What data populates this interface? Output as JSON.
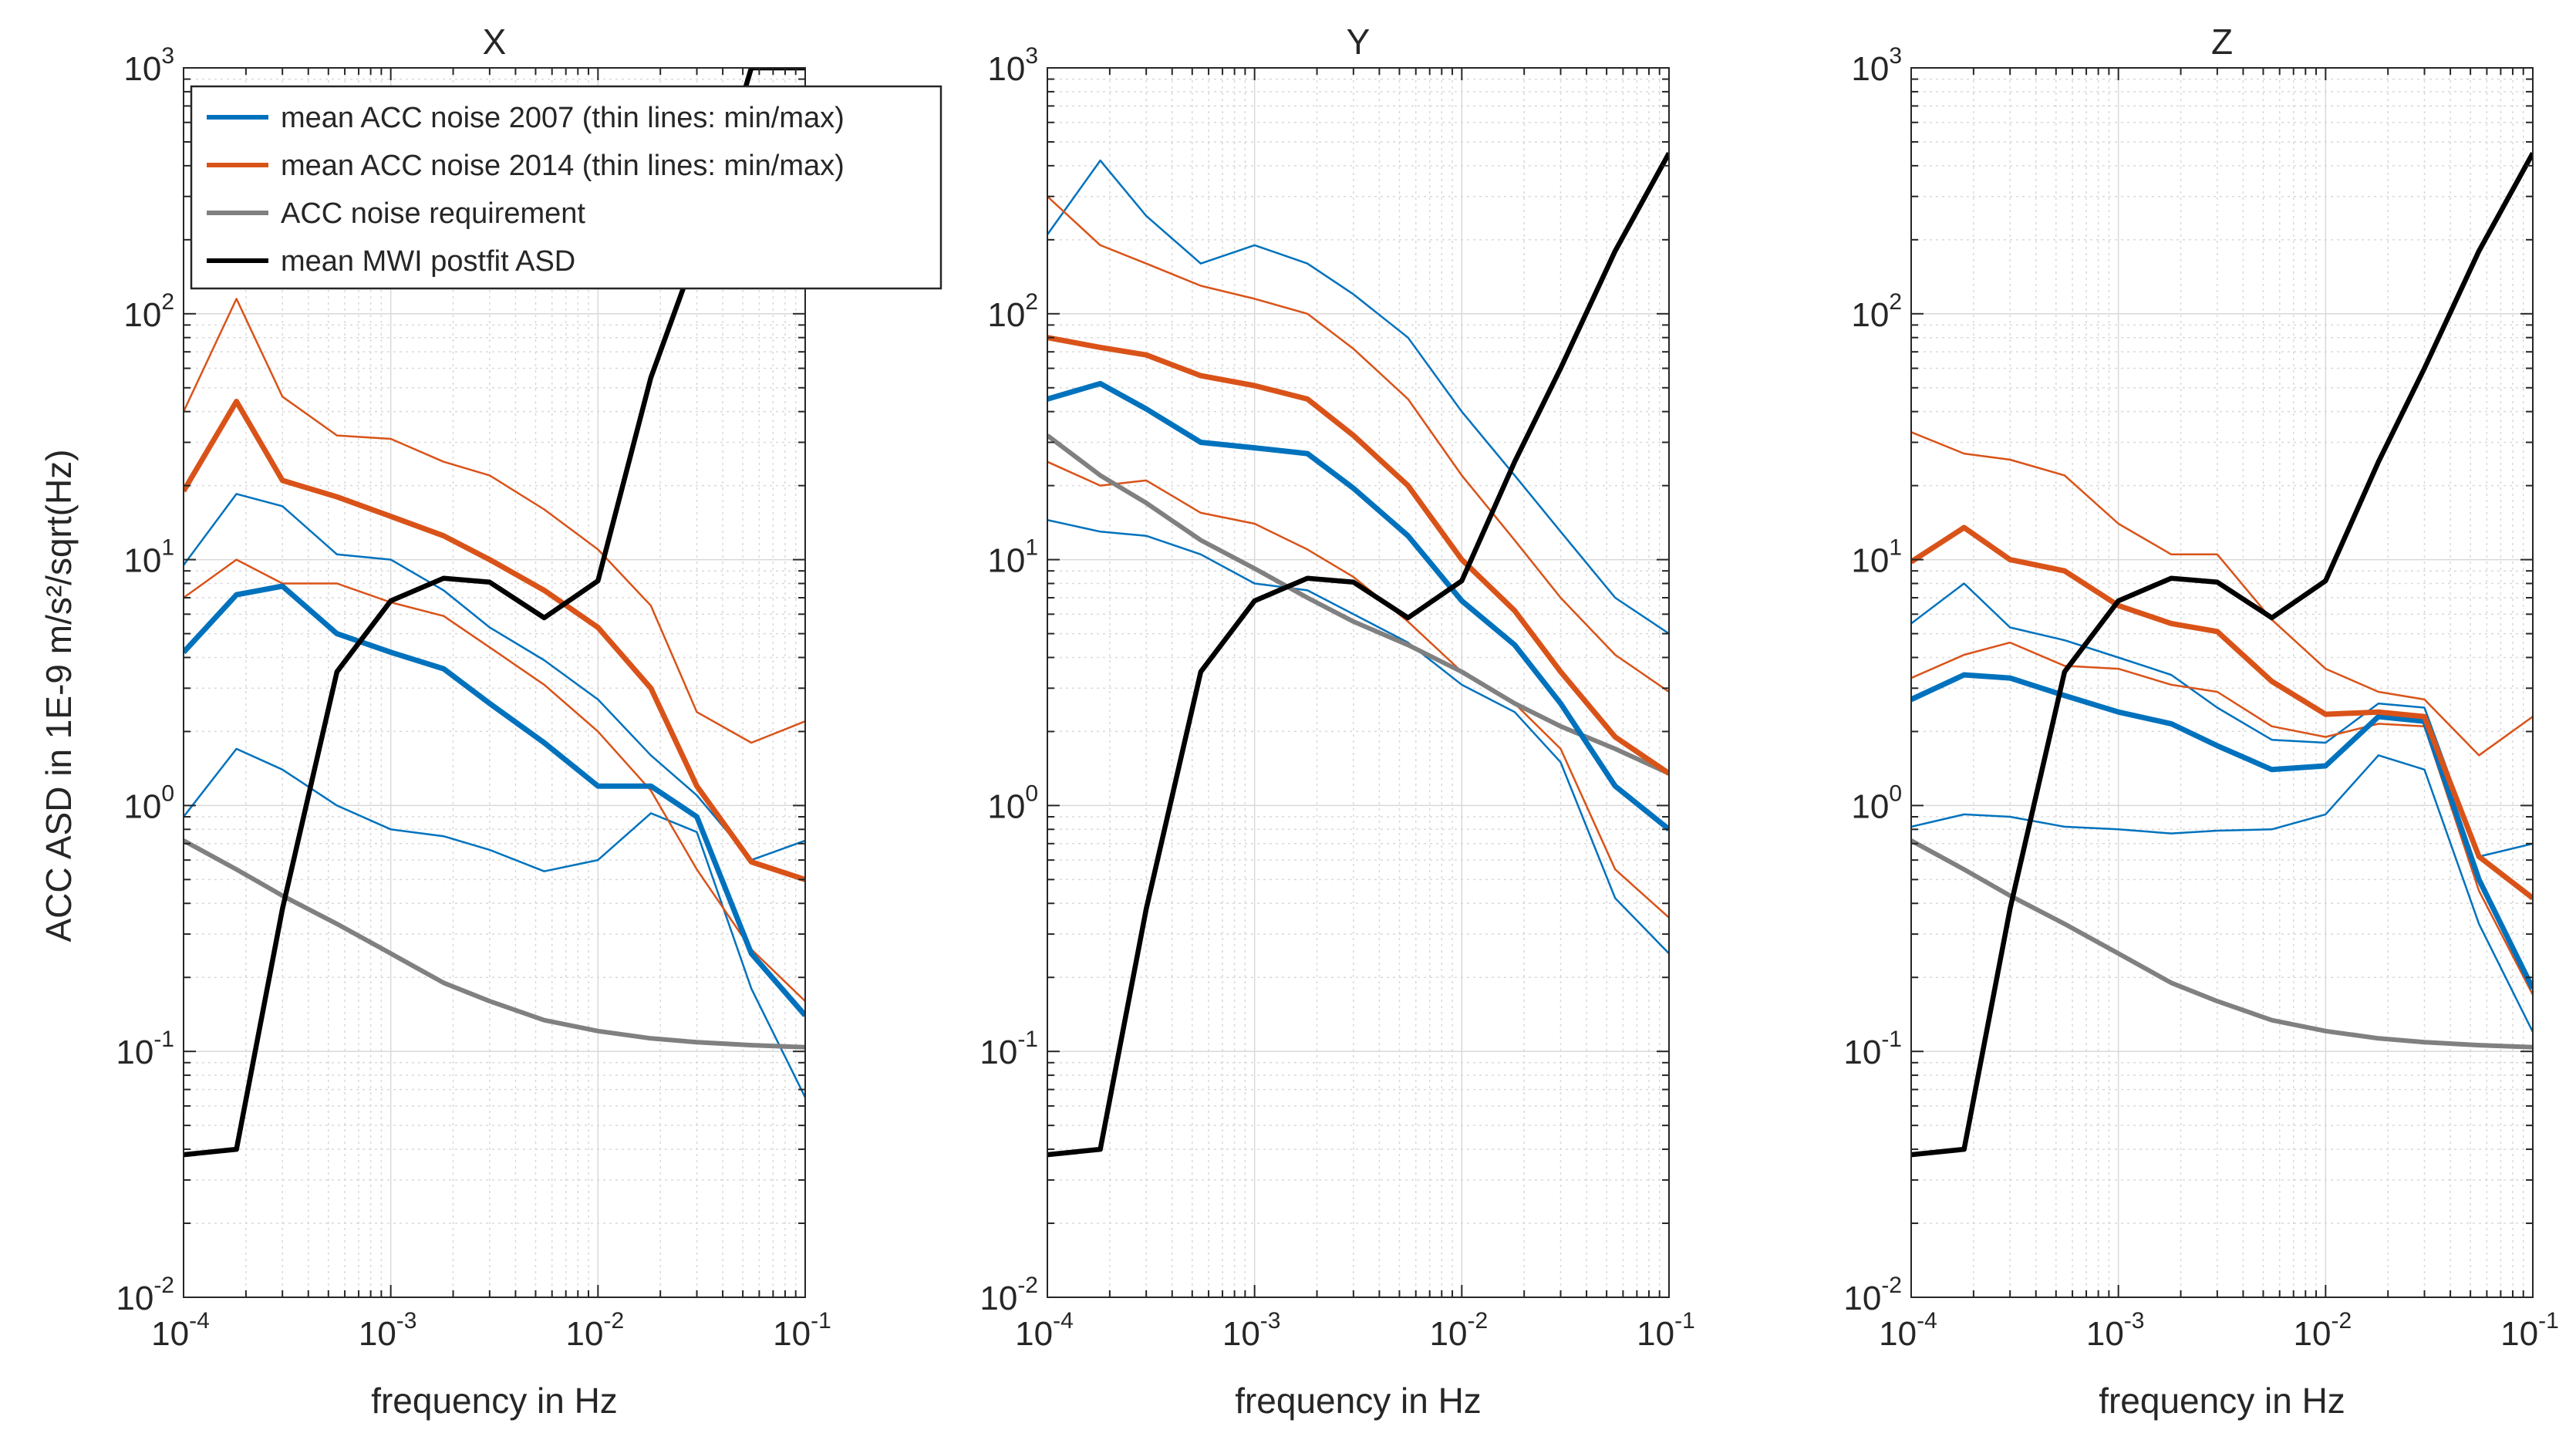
{
  "ylabel": "ACC ASD in 1E-9 m/s²/sqrt(Hz)",
  "xlabel": "frequency in Hz",
  "legend": [
    {
      "label": "mean ACC noise 2007 (thin lines: min/max)",
      "color": "#0072BD"
    },
    {
      "label": "mean ACC noise 2014 (thin lines: min/max)",
      "color": "#D95319"
    },
    {
      "label": "ACC noise requirement",
      "color": "#808080"
    },
    {
      "label": "mean MWI postfit ASD",
      "color": "#000000"
    }
  ],
  "colors": {
    "blue": "#0072BD",
    "red": "#D95319",
    "gray": "#808080",
    "black": "#000000",
    "grid": "#d9d9d9",
    "axis": "#262626"
  },
  "chart_data": [
    {
      "type": "line",
      "title": "X",
      "xscale": "log",
      "yscale": "log",
      "xlim": [
        0.0001,
        0.1
      ],
      "ylim": [
        0.01,
        1000
      ],
      "grid": true,
      "legend_position": "top-left",
      "xticks": [
        "10^-4",
        "10^-3",
        "10^-2",
        "10^-1"
      ],
      "yticks": [
        "10^-2",
        "10^-1",
        "10^0",
        "10^1",
        "10^2",
        "10^3"
      ],
      "series": [
        {
          "name": "mean ACC noise 2007 (thin lines: min/max)",
          "role": "mean2007",
          "x": [
            0.0001,
            0.00018,
            0.0003,
            0.00055,
            0.001,
            0.0018,
            0.003,
            0.0055,
            0.01,
            0.018,
            0.03,
            0.055,
            0.1
          ],
          "y": [
            4.2,
            7.2,
            7.8,
            5.0,
            4.2,
            3.6,
            2.6,
            1.8,
            1.2,
            1.2,
            0.9,
            0.25,
            0.14
          ]
        },
        {
          "role": "max2007",
          "x": [
            0.0001,
            0.00018,
            0.0003,
            0.00055,
            0.001,
            0.0018,
            0.003,
            0.0055,
            0.01,
            0.018,
            0.03,
            0.055,
            0.1
          ],
          "y": [
            9.5,
            18.5,
            16.5,
            10.5,
            10.0,
            7.5,
            5.3,
            3.9,
            2.7,
            1.6,
            1.1,
            0.6,
            0.72
          ]
        },
        {
          "role": "min2007",
          "x": [
            0.0001,
            0.00018,
            0.0003,
            0.00055,
            0.001,
            0.0018,
            0.003,
            0.0055,
            0.01,
            0.018,
            0.03,
            0.055,
            0.1
          ],
          "y": [
            0.9,
            1.7,
            1.4,
            1.0,
            0.8,
            0.75,
            0.66,
            0.54,
            0.6,
            0.93,
            0.78,
            0.18,
            0.065
          ]
        },
        {
          "name": "mean ACC noise 2014 (thin lines: min/max)",
          "role": "mean2014",
          "x": [
            0.0001,
            0.00018,
            0.0003,
            0.00055,
            0.001,
            0.0018,
            0.003,
            0.0055,
            0.01,
            0.018,
            0.03,
            0.055,
            0.1
          ],
          "y": [
            19,
            44,
            21,
            18,
            15,
            12.5,
            10,
            7.5,
            5.3,
            3.0,
            1.2,
            0.59,
            0.5
          ]
        },
        {
          "role": "max2014",
          "x": [
            0.0001,
            0.00018,
            0.0003,
            0.00055,
            0.001,
            0.0018,
            0.003,
            0.0055,
            0.01,
            0.018,
            0.03,
            0.055,
            0.1
          ],
          "y": [
            40,
            115,
            46,
            32,
            31,
            25,
            22,
            16,
            11,
            6.5,
            2.4,
            1.8,
            2.2
          ]
        },
        {
          "role": "min2014",
          "x": [
            0.0001,
            0.00018,
            0.0003,
            0.00055,
            0.001,
            0.0018,
            0.003,
            0.0055,
            0.01,
            0.018,
            0.03,
            0.055,
            0.1
          ],
          "y": [
            7,
            10,
            8,
            8,
            6.7,
            5.9,
            4.4,
            3.1,
            2.0,
            1.15,
            0.55,
            0.26,
            0.16
          ]
        },
        {
          "name": "ACC noise requirement",
          "role": "requirement",
          "x": [
            0.0001,
            0.00018,
            0.0003,
            0.00055,
            0.001,
            0.0018,
            0.003,
            0.0055,
            0.01,
            0.018,
            0.03,
            0.055,
            0.1
          ],
          "y": [
            0.72,
            0.55,
            0.43,
            0.33,
            0.25,
            0.19,
            0.16,
            0.134,
            0.121,
            0.113,
            0.109,
            0.106,
            0.104
          ]
        },
        {
          "name": "mean MWI postfit ASD",
          "role": "mwi",
          "x": [
            0.0001,
            0.00018,
            0.0003,
            0.00055,
            0.001,
            0.0018,
            0.003,
            0.0055,
            0.01,
            0.018,
            0.03,
            0.055,
            0.1
          ],
          "y": [
            0.038,
            0.04,
            0.38,
            3.5,
            6.8,
            8.4,
            8.1,
            5.8,
            8.2,
            55,
            180,
            1000,
            1000
          ]
        }
      ]
    },
    {
      "type": "line",
      "title": "Y",
      "xscale": "log",
      "yscale": "log",
      "xlim": [
        0.0001,
        0.1
      ],
      "ylim": [
        0.01,
        1000
      ],
      "grid": true,
      "xticks": [
        "10^-4",
        "10^-3",
        "10^-2",
        "10^-1"
      ],
      "yticks": [
        "10^-2",
        "10^-1",
        "10^0",
        "10^1",
        "10^2",
        "10^3"
      ],
      "series": [
        {
          "name": "mean ACC noise 2007 (thin lines: min/max)",
          "role": "mean2007",
          "x": [
            0.0001,
            0.00018,
            0.0003,
            0.00055,
            0.001,
            0.0018,
            0.003,
            0.0055,
            0.01,
            0.018,
            0.03,
            0.055,
            0.1
          ],
          "y": [
            45,
            52,
            41,
            30,
            28.5,
            27,
            19.5,
            12.5,
            6.8,
            4.5,
            2.6,
            1.2,
            0.8
          ]
        },
        {
          "role": "max2007",
          "x": [
            0.0001,
            0.00018,
            0.0003,
            0.00055,
            0.001,
            0.0018,
            0.003,
            0.0055,
            0.01,
            0.018,
            0.03,
            0.055,
            0.1
          ],
          "y": [
            210,
            420,
            250,
            160,
            190,
            160,
            120,
            80,
            40,
            22,
            13,
            7,
            5
          ]
        },
        {
          "role": "min2007",
          "x": [
            0.0001,
            0.00018,
            0.0003,
            0.00055,
            0.001,
            0.0018,
            0.003,
            0.0055,
            0.01,
            0.018,
            0.03,
            0.055,
            0.1
          ],
          "y": [
            14.5,
            13,
            12.5,
            10.5,
            8,
            7.5,
            6,
            4.6,
            3.1,
            2.4,
            1.5,
            0.42,
            0.25
          ]
        },
        {
          "name": "mean ACC noise 2014 (thin lines: min/max)",
          "role": "mean2014",
          "x": [
            0.0001,
            0.00018,
            0.0003,
            0.00055,
            0.001,
            0.0018,
            0.003,
            0.0055,
            0.01,
            0.018,
            0.03,
            0.055,
            0.1
          ],
          "y": [
            80,
            73,
            68,
            56,
            51,
            45,
            32,
            20,
            10,
            6.2,
            3.5,
            1.9,
            1.35
          ]
        },
        {
          "role": "max2014",
          "x": [
            0.0001,
            0.00018,
            0.0003,
            0.00055,
            0.001,
            0.0018,
            0.003,
            0.0055,
            0.01,
            0.018,
            0.03,
            0.055,
            0.1
          ],
          "y": [
            300,
            190,
            160,
            130,
            115,
            100,
            72,
            45,
            22,
            12,
            7,
            4.1,
            2.9
          ]
        },
        {
          "role": "min2014",
          "x": [
            0.0001,
            0.00018,
            0.0003,
            0.00055,
            0.001,
            0.0018,
            0.003,
            0.0055,
            0.01,
            0.018,
            0.03,
            0.055,
            0.1
          ],
          "y": [
            25,
            20,
            21,
            15.5,
            14,
            11,
            8.5,
            5.6,
            3.5,
            2.6,
            1.7,
            0.55,
            0.35
          ]
        },
        {
          "name": "ACC noise requirement",
          "role": "requirement",
          "x": [
            0.0001,
            0.00018,
            0.0003,
            0.00055,
            0.001,
            0.0018,
            0.003,
            0.0055,
            0.01,
            0.018,
            0.03,
            0.055,
            0.1
          ],
          "y": [
            32,
            22,
            17,
            12,
            9.2,
            7.0,
            5.6,
            4.5,
            3.5,
            2.6,
            2.1,
            1.7,
            1.35
          ]
        },
        {
          "name": "mean MWI postfit ASD",
          "role": "mwi",
          "x": [
            0.0001,
            0.00018,
            0.0003,
            0.00055,
            0.001,
            0.0018,
            0.003,
            0.0055,
            0.01,
            0.018,
            0.03,
            0.055,
            0.1
          ],
          "y": [
            0.038,
            0.04,
            0.38,
            3.5,
            6.8,
            8.4,
            8.1,
            5.8,
            8.2,
            25,
            60,
            180,
            450
          ]
        }
      ]
    },
    {
      "type": "line",
      "title": "Z",
      "xscale": "log",
      "yscale": "log",
      "xlim": [
        0.0001,
        0.1
      ],
      "ylim": [
        0.01,
        1000
      ],
      "grid": true,
      "xticks": [
        "10^-4",
        "10^-3",
        "10^-2",
        "10^-1"
      ],
      "yticks": [
        "10^-2",
        "10^-1",
        "10^0",
        "10^1",
        "10^2",
        "10^3"
      ],
      "series": [
        {
          "name": "mean ACC noise 2007 (thin lines: min/max)",
          "role": "mean2007",
          "x": [
            0.0001,
            0.00018,
            0.0003,
            0.00055,
            0.001,
            0.0018,
            0.003,
            0.0055,
            0.01,
            0.018,
            0.03,
            0.055,
            0.1
          ],
          "y": [
            2.7,
            3.4,
            3.3,
            2.8,
            2.4,
            2.15,
            1.75,
            1.4,
            1.45,
            2.3,
            2.2,
            0.5,
            0.18
          ]
        },
        {
          "role": "max2007",
          "x": [
            0.0001,
            0.00018,
            0.0003,
            0.00055,
            0.001,
            0.0018,
            0.003,
            0.0055,
            0.01,
            0.018,
            0.03,
            0.055,
            0.1
          ],
          "y": [
            5.5,
            8.0,
            5.3,
            4.7,
            4.0,
            3.4,
            2.5,
            1.85,
            1.8,
            2.6,
            2.5,
            0.62,
            0.7
          ]
        },
        {
          "role": "min2007",
          "x": [
            0.0001,
            0.00018,
            0.0003,
            0.00055,
            0.001,
            0.0018,
            0.003,
            0.0055,
            0.01,
            0.018,
            0.03,
            0.055,
            0.1
          ],
          "y": [
            0.82,
            0.92,
            0.9,
            0.82,
            0.8,
            0.77,
            0.79,
            0.8,
            0.92,
            1.6,
            1.4,
            0.33,
            0.12
          ]
        },
        {
          "name": "mean ACC noise 2014 (thin lines: min/max)",
          "role": "mean2014",
          "x": [
            0.0001,
            0.00018,
            0.0003,
            0.00055,
            0.001,
            0.0018,
            0.003,
            0.0055,
            0.01,
            0.018,
            0.03,
            0.055,
            0.1
          ],
          "y": [
            9.8,
            13.5,
            10,
            9,
            6.5,
            5.5,
            5.1,
            3.2,
            2.35,
            2.4,
            2.3,
            0.62,
            0.42
          ]
        },
        {
          "role": "max2014",
          "x": [
            0.0001,
            0.00018,
            0.0003,
            0.00055,
            0.001,
            0.0018,
            0.003,
            0.0055,
            0.01,
            0.018,
            0.03,
            0.055,
            0.1
          ],
          "y": [
            33,
            27,
            25.5,
            22,
            14,
            10.5,
            10.5,
            5.7,
            3.6,
            2.9,
            2.7,
            1.6,
            2.3
          ]
        },
        {
          "role": "min2014",
          "x": [
            0.0001,
            0.00018,
            0.0003,
            0.00055,
            0.001,
            0.0018,
            0.003,
            0.0055,
            0.01,
            0.018,
            0.03,
            0.055,
            0.1
          ],
          "y": [
            3.3,
            4.1,
            4.6,
            3.7,
            3.6,
            3.1,
            2.9,
            2.1,
            1.9,
            2.15,
            2.1,
            0.45,
            0.17
          ]
        },
        {
          "name": "ACC noise requirement",
          "role": "requirement",
          "x": [
            0.0001,
            0.00018,
            0.0003,
            0.00055,
            0.001,
            0.0018,
            0.003,
            0.0055,
            0.01,
            0.018,
            0.03,
            0.055,
            0.1
          ],
          "y": [
            0.72,
            0.55,
            0.43,
            0.33,
            0.25,
            0.19,
            0.16,
            0.134,
            0.121,
            0.113,
            0.109,
            0.106,
            0.104
          ]
        },
        {
          "name": "mean MWI postfit ASD",
          "role": "mwi",
          "x": [
            0.0001,
            0.00018,
            0.0003,
            0.00055,
            0.001,
            0.0018,
            0.003,
            0.0055,
            0.01,
            0.018,
            0.03,
            0.055,
            0.1
          ],
          "y": [
            0.038,
            0.04,
            0.38,
            3.5,
            6.8,
            8.4,
            8.1,
            5.8,
            8.2,
            25,
            60,
            180,
            450
          ]
        }
      ]
    }
  ]
}
